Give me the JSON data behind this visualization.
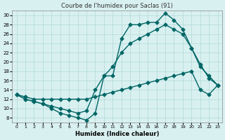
{
  "title": "Courbe de l'humidex pour Saclas (91)",
  "xlabel": "Humidex (Indice chaleur)",
  "ylabel": "",
  "background_color": "#d9f0f0",
  "line_color": "#006666",
  "xlim": [
    -0.5,
    23.5
  ],
  "ylim": [
    7,
    31
  ],
  "yticks": [
    8,
    10,
    12,
    14,
    16,
    18,
    20,
    22,
    24,
    26,
    28,
    30
  ],
  "xticks": [
    0,
    1,
    2,
    3,
    4,
    5,
    6,
    7,
    8,
    9,
    10,
    11,
    12,
    13,
    14,
    15,
    16,
    17,
    18,
    19,
    20,
    21,
    22,
    23
  ],
  "line1_x": [
    0,
    1,
    2,
    3,
    4,
    5,
    6,
    7,
    8,
    9,
    10,
    11,
    12,
    13,
    14,
    15,
    16,
    17,
    18,
    19,
    20,
    21,
    22,
    23
  ],
  "line1_y": [
    13,
    12,
    11.5,
    11,
    10,
    9,
    8.5,
    8,
    7.5,
    9,
    17,
    17,
    25,
    28,
    28,
    28.5,
    28.5,
    30.5,
    29,
    27,
    23,
    19.5,
    16.5,
    15
  ],
  "line2_x": [
    0,
    1,
    2,
    3,
    4,
    5,
    6,
    7,
    8,
    9,
    10,
    11,
    12,
    13,
    14,
    15,
    16,
    17,
    18,
    19,
    20,
    21,
    22,
    23
  ],
  "line2_y": [
    13,
    12,
    11.5,
    11,
    10.5,
    10,
    9.5,
    9,
    9.5,
    14,
    17,
    19,
    22,
    24,
    25,
    26,
    27,
    28,
    27,
    26,
    23,
    19,
    17,
    15
  ],
  "line3_x": [
    0,
    1,
    2,
    3,
    4,
    5,
    6,
    7,
    8,
    9,
    10,
    11,
    12,
    13,
    14,
    15,
    16,
    17,
    18,
    19,
    20,
    21,
    22,
    23
  ],
  "line3_y": [
    13,
    12.5,
    12,
    12,
    12,
    12,
    12,
    12,
    12,
    12.5,
    13,
    13.5,
    14,
    14.5,
    15,
    15.5,
    16,
    16.5,
    17,
    17.5,
    18,
    14,
    13,
    15
  ],
  "grid_color": "#b0d8d8",
  "marker": "D",
  "markersize": 2.5,
  "linewidth": 1.0
}
